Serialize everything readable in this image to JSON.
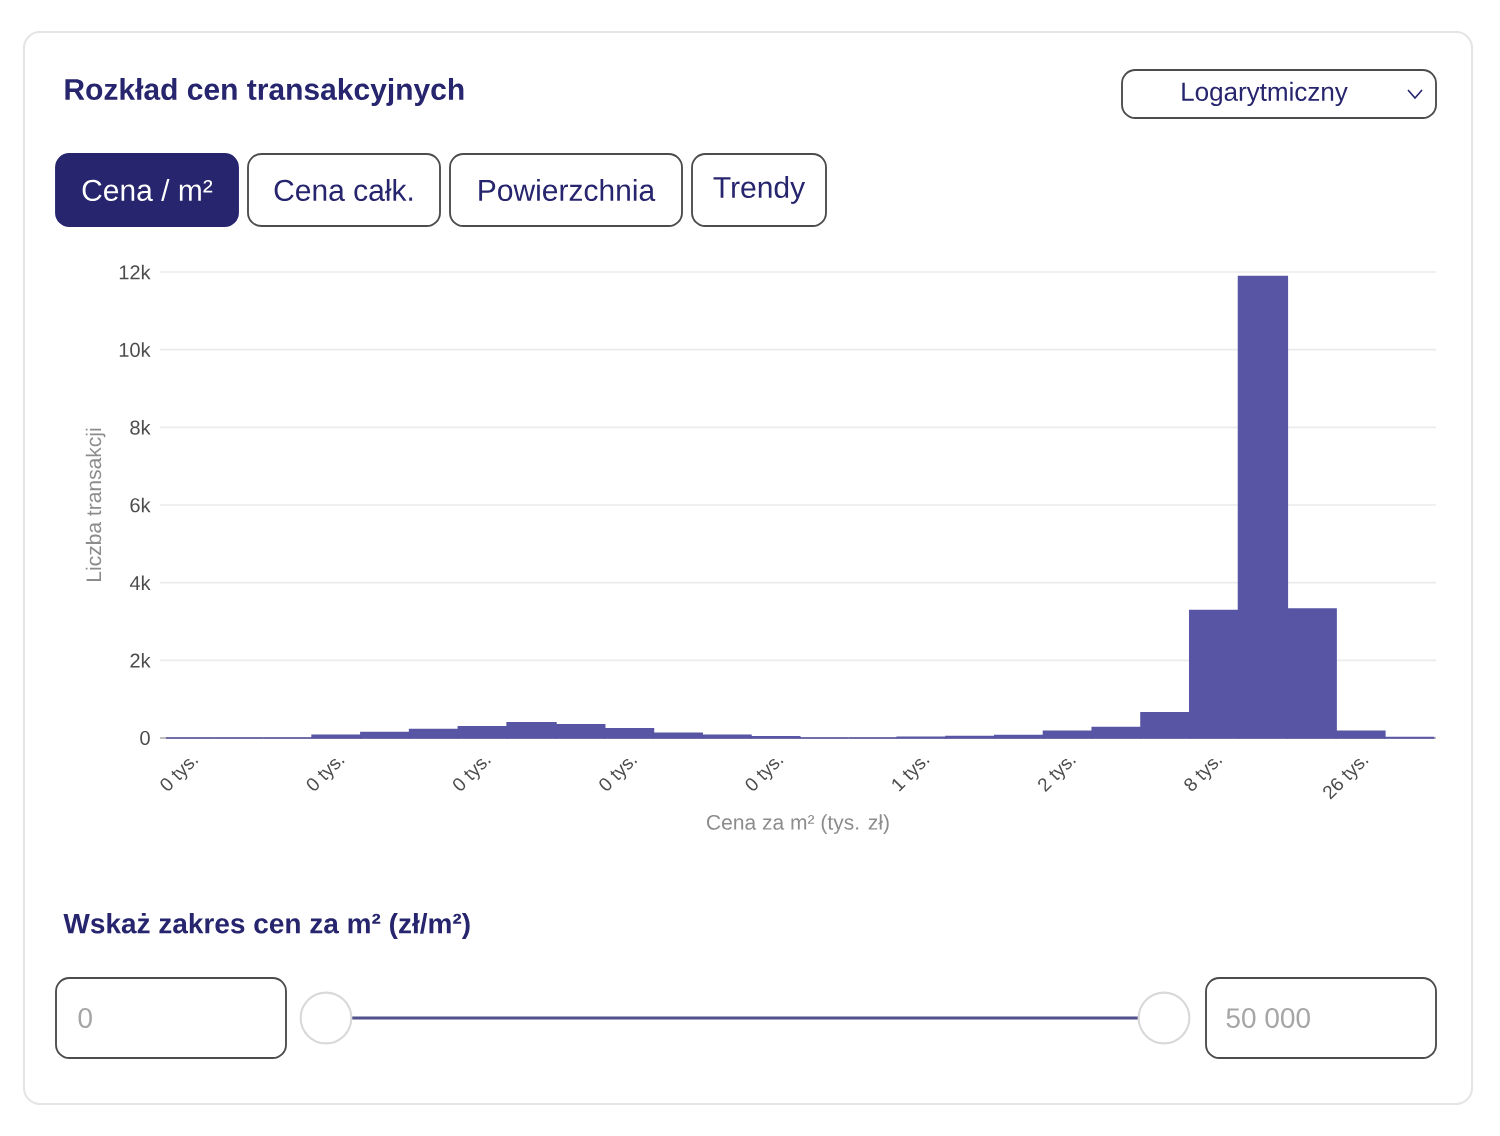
{
  "chart_data": {
    "type": "bar",
    "title": "Rozkład cen transakcyjnych",
    "xlabel": "Cena za m² (tys. zł)",
    "ylabel": "Liczba transakcji",
    "categories": [
      "0 tys.",
      null,
      null,
      "0 tys.",
      null,
      null,
      "0 tys.",
      null,
      null,
      "0 tys.",
      null,
      null,
      "0 tys.",
      null,
      null,
      "1 tys.",
      null,
      null,
      "2 tys.",
      null,
      null,
      "8 tys.",
      null,
      null,
      "26 tys.",
      null
    ],
    "values": [
      0,
      0,
      0,
      70,
      140,
      220,
      290,
      390,
      340,
      240,
      120,
      70,
      30,
      0,
      0,
      20,
      40,
      60,
      170,
      270,
      650,
      3280,
      11880,
      3320,
      170,
      10
    ],
    "color": "#5856a4",
    "ylim": [
      0,
      12000
    ],
    "yticks": [
      {
        "value": 0,
        "label": "0"
      },
      {
        "value": 2000,
        "label": "2k"
      },
      {
        "value": 4000,
        "label": "4k"
      },
      {
        "value": 6000,
        "label": "6k"
      },
      {
        "value": 8000,
        "label": "8k"
      },
      {
        "value": 10000,
        "label": "10k"
      },
      {
        "value": 12000,
        "label": "12k"
      }
    ],
    "grid": "y",
    "annotations": [
      "Logarytmiczny",
      "Cena / m²",
      "Cena całk.",
      "Powierzchnia",
      "Trendy",
      "Wskaż zakres cen za m² (zł/m²)",
      "0",
      "50 000"
    ]
  }
}
